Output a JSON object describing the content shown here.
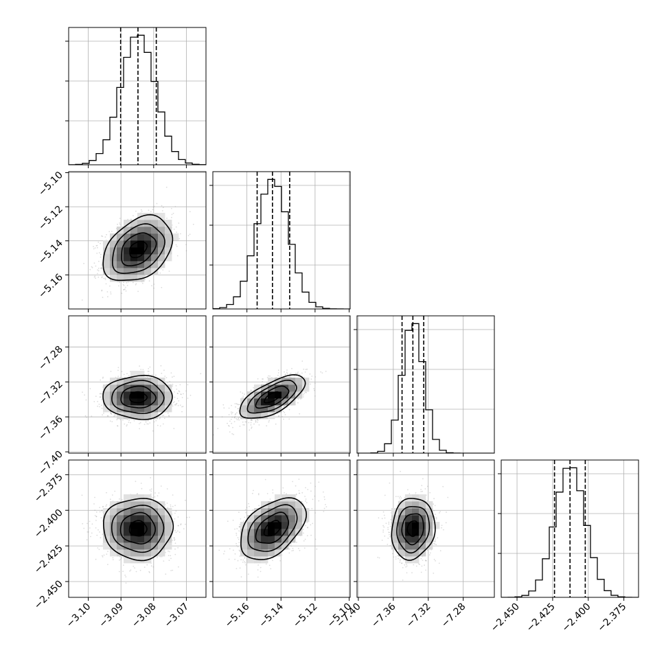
{
  "chart_data": {
    "type": "corner",
    "title": "",
    "legend": "none",
    "grid": true,
    "parameters": [
      {
        "index": 0,
        "label": "",
        "range": [
          -3.106,
          -3.064
        ],
        "ticks": [
          -3.1,
          -3.09,
          -3.08,
          -3.07
        ],
        "tick_labels": [
          "−3.10",
          "−3.09",
          "−3.08",
          "−3.07"
        ],
        "quantiles": [
          -3.0901,
          -3.0848,
          -3.0792
        ],
        "mean": -3.0848,
        "sigma": 0.0053
      },
      {
        "index": 1,
        "label": "",
        "range": [
          -5.18,
          -5.0994
        ],
        "ticks": [
          -5.16,
          -5.14,
          -5.12,
          -5.1
        ],
        "tick_labels": [
          "−5.16",
          "−5.14",
          "−5.12",
          "−5.10"
        ],
        "quantiles": [
          -5.154,
          -5.145,
          -5.1349
        ],
        "mean": -5.145,
        "sigma": 0.0096
      },
      {
        "index": 2,
        "label": "",
        "range": [
          -7.4015,
          -7.2444
        ],
        "ticks": [
          -7.4,
          -7.36,
          -7.32,
          -7.28
        ],
        "tick_labels": [
          "−7.40",
          "−7.36",
          "−7.32",
          "−7.28"
        ],
        "quantiles": [
          -7.35,
          -7.3376,
          -7.3252
        ],
        "mean": -7.3376,
        "sigma": 0.0124
      },
      {
        "index": 3,
        "label": "",
        "range": [
          -2.4611,
          -2.3647
        ],
        "ticks": [
          -2.45,
          -2.425,
          -2.4,
          -2.375
        ],
        "tick_labels": [
          "−2.450",
          "−2.425",
          "−2.400",
          "−2.375"
        ],
        "quantiles": [
          -2.4237,
          -2.4128,
          -2.4021
        ],
        "mean": -2.4128,
        "sigma": 0.0108
      }
    ],
    "correlations": [
      {
        "i": 1,
        "j": 0,
        "rho": 0.35
      },
      {
        "i": 2,
        "j": 0,
        "rho": 0.0
      },
      {
        "i": 2,
        "j": 1,
        "rho": 0.65
      },
      {
        "i": 3,
        "j": 0,
        "rho": 0.0
      },
      {
        "i": 3,
        "j": 1,
        "rho": 0.45
      },
      {
        "i": 3,
        "j": 2,
        "rho": 0.1
      }
    ],
    "contour_levels_sigma": [
      0.5,
      1.0,
      1.5,
      2.0
    ]
  }
}
